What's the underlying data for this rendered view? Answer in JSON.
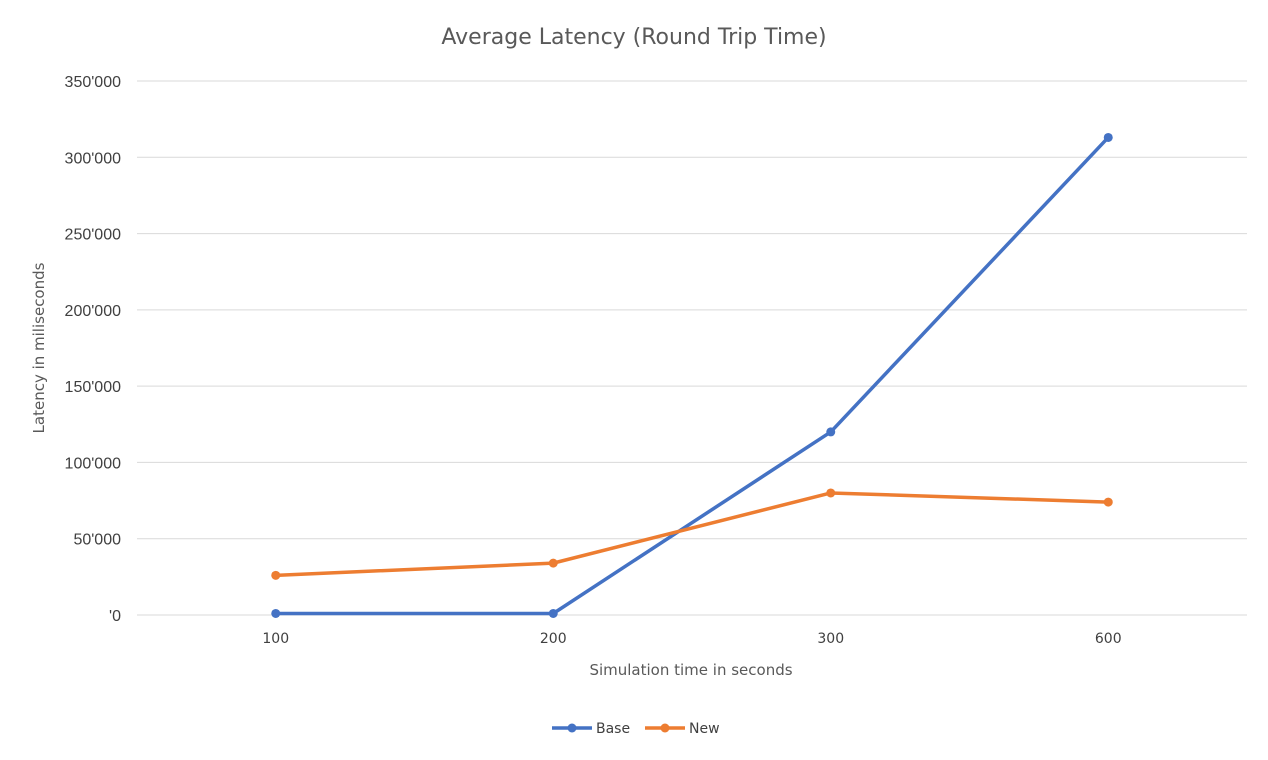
{
  "chart_data": {
    "type": "line",
    "title": "Average Latency (Round Trip Time)",
    "xlabel": "Simulation time in seconds",
    "ylabel": "Latency in miliseconds",
    "categories": [
      "100",
      "200",
      "300",
      "600"
    ],
    "ylim": [
      0,
      350000
    ],
    "yticks": [
      0,
      50000,
      100000,
      150000,
      200000,
      250000,
      300000,
      350000
    ],
    "ytick_labels": [
      "'0",
      "50'000",
      "100'000",
      "150'000",
      "200'000",
      "250'000",
      "300'000",
      "350'000"
    ],
    "grid": true,
    "legend_position": "bottom",
    "series": [
      {
        "name": "Base",
        "color": "#4472c4",
        "values": [
          1000,
          1000,
          120000,
          313000
        ]
      },
      {
        "name": "New",
        "color": "#ed7d31",
        "values": [
          26000,
          34000,
          80000,
          74000
        ]
      }
    ]
  }
}
